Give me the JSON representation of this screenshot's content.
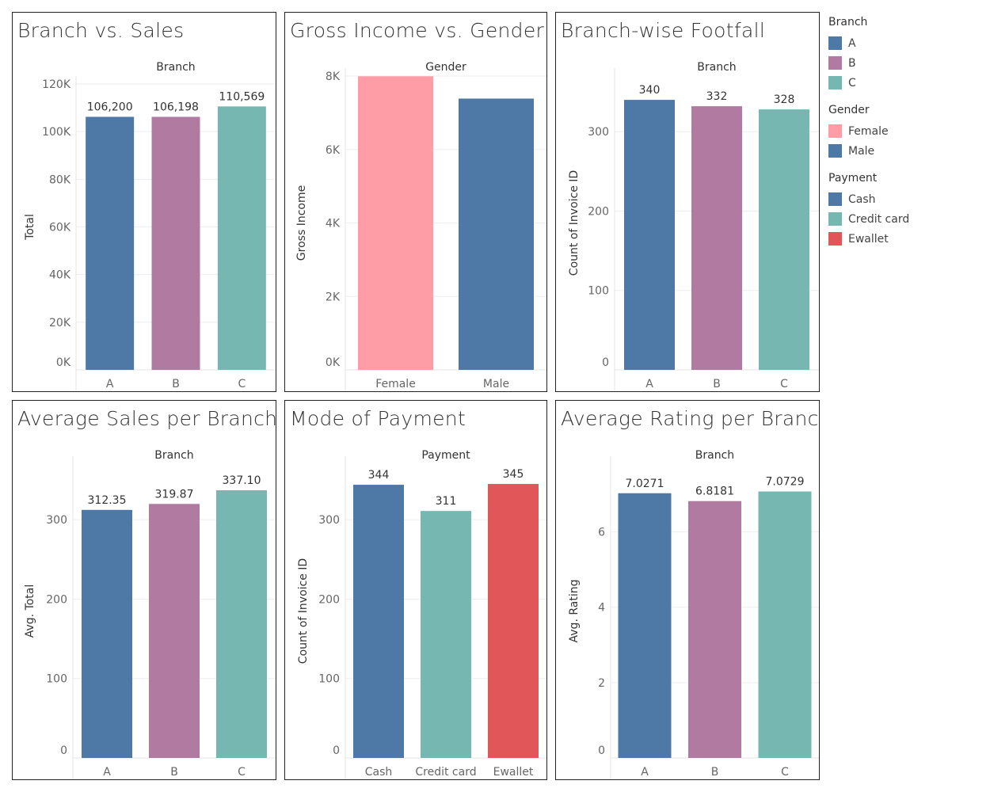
{
  "palette": {
    "A": "#4e79a7",
    "B": "#b07aa1",
    "C": "#76b7b2",
    "Female": "#ff9da7",
    "Male": "#4e79a7",
    "Cash": "#4e79a7",
    "Credit card": "#76b7b2",
    "Ewallet": "#e15759"
  },
  "legend": [
    {
      "title": "Branch",
      "items": [
        {
          "label": "A",
          "color": "#4e79a7"
        },
        {
          "label": "B",
          "color": "#b07aa1"
        },
        {
          "label": "C",
          "color": "#76b7b2"
        }
      ]
    },
    {
      "title": "Gender",
      "items": [
        {
          "label": "Female",
          "color": "#ff9da7"
        },
        {
          "label": "Male",
          "color": "#4e79a7"
        }
      ]
    },
    {
      "title": "Payment",
      "items": [
        {
          "label": "Cash",
          "color": "#4e79a7"
        },
        {
          "label": "Credit card",
          "color": "#76b7b2"
        },
        {
          "label": "Ewallet",
          "color": "#e15759"
        }
      ]
    }
  ],
  "chart_data": [
    {
      "type": "bar",
      "title": "Branch vs. Sales",
      "header": "Branch",
      "categories": [
        "A",
        "B",
        "C"
      ],
      "values": [
        106200,
        106198,
        110569
      ],
      "labels": [
        "106,200",
        "106,198",
        "110,569"
      ],
      "ylabel": "Total",
      "ylim": [
        0,
        120000
      ],
      "yticks": [
        0,
        20000,
        40000,
        60000,
        80000,
        100000,
        120000
      ],
      "ytick_labels": [
        "0K",
        "20K",
        "40K",
        "60K",
        "80K",
        "100K",
        "120K"
      ],
      "colors": [
        "#4e79a7",
        "#b07aa1",
        "#76b7b2"
      ]
    },
    {
      "type": "bar",
      "title": "Gross Income vs. Gender",
      "header": "Gender",
      "categories": [
        "Female",
        "Male"
      ],
      "values": [
        7994,
        7386
      ],
      "labels": [],
      "ylabel": "Gross Income",
      "ylim": [
        0,
        8000
      ],
      "yticks": [
        0,
        2000,
        4000,
        6000,
        8000
      ],
      "ytick_labels": [
        "0K",
        "2K",
        "4K",
        "6K",
        "8K"
      ],
      "colors": [
        "#ff9da7",
        "#4e79a7"
      ]
    },
    {
      "type": "bar",
      "title": "Branch-wise Footfall",
      "header": "Branch",
      "categories": [
        "A",
        "B",
        "C"
      ],
      "values": [
        340,
        332,
        328
      ],
      "labels": [
        "340",
        "332",
        "328"
      ],
      "ylabel": "Count of Invoice ID",
      "ylim": [
        0,
        370
      ],
      "yticks": [
        0,
        100,
        200,
        300
      ],
      "ytick_labels": [
        "0",
        "100",
        "200",
        "300"
      ],
      "colors": [
        "#4e79a7",
        "#b07aa1",
        "#76b7b2"
      ]
    },
    {
      "type": "bar",
      "title": "Average Sales per Branch",
      "header": "Branch",
      "categories": [
        "A",
        "B",
        "C"
      ],
      "values": [
        312.35,
        319.87,
        337.1
      ],
      "labels": [
        "312.35",
        "319.87",
        "337.10"
      ],
      "ylabel": "Avg. Total",
      "ylim": [
        0,
        370
      ],
      "yticks": [
        0,
        100,
        200,
        300
      ],
      "ytick_labels": [
        "0",
        "100",
        "200",
        "300"
      ],
      "colors": [
        "#4e79a7",
        "#b07aa1",
        "#76b7b2"
      ]
    },
    {
      "type": "bar",
      "title": "Mode of Payment",
      "header": "Payment",
      "categories": [
        "Cash",
        "Credit card",
        "Ewallet"
      ],
      "values": [
        344,
        311,
        345
      ],
      "labels": [
        "344",
        "311",
        "345"
      ],
      "ylabel": "Count of Invoice ID",
      "ylim": [
        0,
        370
      ],
      "yticks": [
        0,
        100,
        200,
        300
      ],
      "ytick_labels": [
        "0",
        "100",
        "200",
        "300"
      ],
      "colors": [
        "#4e79a7",
        "#76b7b2",
        "#e15759"
      ]
    },
    {
      "type": "bar",
      "title": "Average Rating per Branch",
      "header": "Branch",
      "categories": [
        "A",
        "B",
        "C"
      ],
      "values": [
        7.0271,
        6.8181,
        7.0729
      ],
      "labels": [
        "7.0271",
        "6.8181",
        "7.0729"
      ],
      "ylabel": "Avg. Rating",
      "ylim": [
        0,
        7.8
      ],
      "yticks": [
        0,
        2,
        4,
        6
      ],
      "ytick_labels": [
        "0",
        "2",
        "4",
        "6"
      ],
      "colors": [
        "#4e79a7",
        "#b07aa1",
        "#76b7b2"
      ]
    }
  ]
}
